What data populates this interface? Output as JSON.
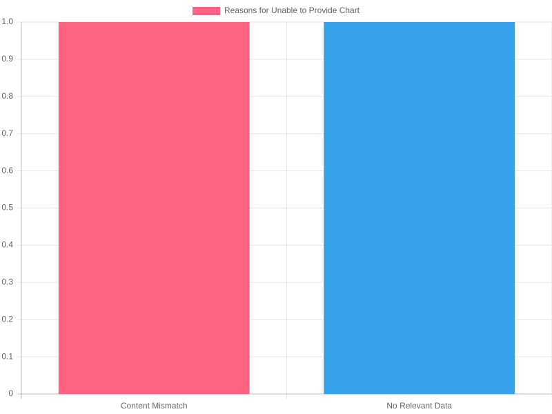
{
  "chart_data": {
    "type": "bar",
    "categories": [
      "Content Mismatch",
      "No Relevant Data"
    ],
    "series": [
      {
        "name": "Reasons for Unable to Provide Chart",
        "colors": [
          "#ff6384",
          "#36a2eb"
        ],
        "values": [
          1,
          1
        ]
      }
    ],
    "ylim": [
      0,
      1
    ],
    "yticks": [
      0,
      0.1,
      0.2,
      0.3,
      0.4,
      0.5,
      0.6,
      0.7,
      0.8,
      0.9,
      {
        "value": 1,
        "label": "1.0"
      }
    ],
    "grid": true,
    "legend": "top"
  }
}
